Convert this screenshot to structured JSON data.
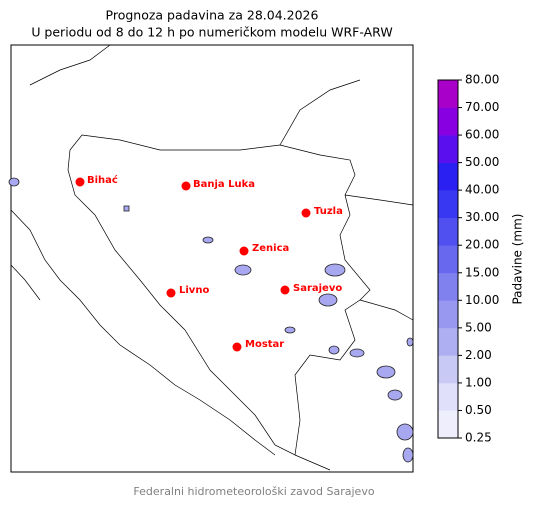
{
  "header": {
    "title": "Prognoza padavina za 28.04.2026",
    "subtitle": "U periodu od 8 do 12 h po numeričkom modelu WRF-ARW"
  },
  "cities": [
    "Bihać",
    "Banja Luka",
    "Tuzla",
    "Zenica",
    "Sarajevo",
    "Livno",
    "Mostar"
  ],
  "colorbar": {
    "label": "Padavine (mm)",
    "ticks": [
      "0.25",
      "0.50",
      "1.00",
      "2.00",
      "5.00",
      "10.00",
      "15.00",
      "20.00",
      "30.00",
      "40.00",
      "50.00",
      "60.00",
      "70.00",
      "80.00"
    ],
    "colors": [
      "#eeeefd",
      "#e0e0fa",
      "#c9c9f6",
      "#aeaef2",
      "#9898f0",
      "#8080ef",
      "#6868ef",
      "#5050f0",
      "#3838f2",
      "#2a20f2",
      "#5a10ee",
      "#8800e2",
      "#a800c8"
    ]
  },
  "footer": "Federalni hidrometeorološki zavod Sarajevo"
}
